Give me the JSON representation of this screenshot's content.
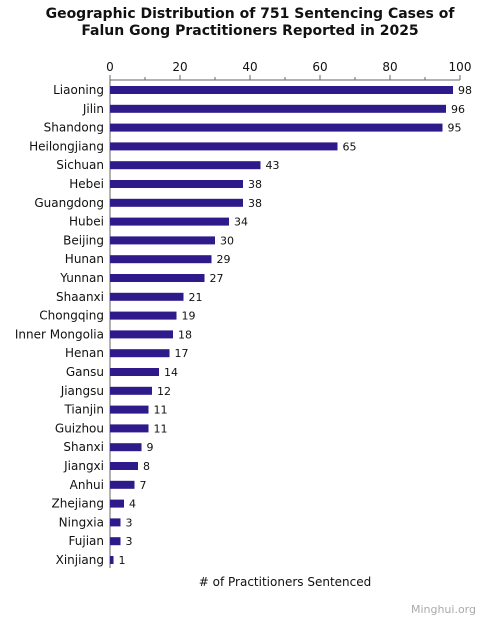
{
  "chart_data": {
    "type": "bar",
    "orientation": "horizontal",
    "title_line1": "Geographic Distribution of 751 Sentencing Cases of",
    "title_line2": "Falun Gong Practitioners Reported in 2025",
    "xlabel": "# of Practitioners Sentenced",
    "ylabel": "",
    "xlim": [
      0,
      100
    ],
    "xticks": [
      0,
      20,
      40,
      60,
      80,
      100
    ],
    "categories": [
      "Liaoning",
      "Jilin",
      "Shandong",
      "Heilongjiang",
      "Sichuan",
      "Hebei",
      "Guangdong",
      "Hubei",
      "Beijing",
      "Hunan",
      "Yunnan",
      "Shaanxi",
      "Chongqing",
      "Inner Mongolia",
      "Henan",
      "Gansu",
      "Jiangsu",
      "Tianjin",
      "Guizhou",
      "Shanxi",
      "Jiangxi",
      "Anhui",
      "Zhejiang",
      "Ningxia",
      "Fujian",
      "Xinjiang"
    ],
    "values": [
      98,
      96,
      95,
      65,
      43,
      38,
      38,
      34,
      30,
      29,
      27,
      21,
      19,
      18,
      17,
      14,
      12,
      11,
      11,
      9,
      8,
      7,
      4,
      3,
      3,
      1
    ],
    "bar_color": "#2e1a8a",
    "grid": false,
    "data_labels": true
  },
  "watermark": "Minghui.org"
}
